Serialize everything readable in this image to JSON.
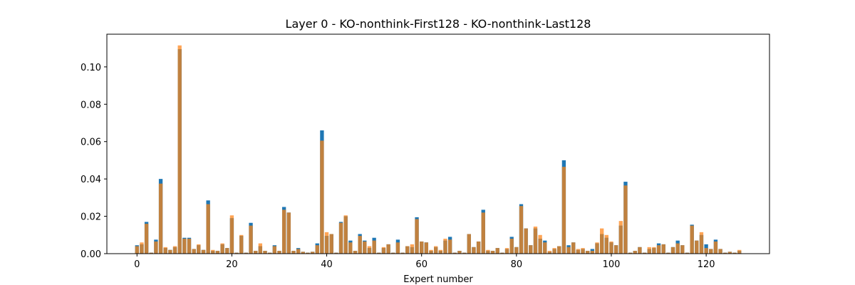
{
  "chart_data": {
    "type": "bar",
    "title": "Layer 0 - KO-nonthink-First128 - KO-nonthink-Last128",
    "xlabel": "Expert number",
    "ylabel": "",
    "xlim": [
      -6.35,
      133.35
    ],
    "ylim": [
      0,
      0.1175
    ],
    "xticks": [
      0,
      20,
      40,
      60,
      80,
      100,
      120
    ],
    "yticks": [
      0.0,
      0.02,
      0.04,
      0.06,
      0.08,
      0.1
    ],
    "ytick_labels": [
      "0.00",
      "0.02",
      "0.04",
      "0.06",
      "0.08",
      "0.10"
    ],
    "grid": false,
    "colors": {
      "first": "#1f77b4",
      "last": "#ff7f0e",
      "overlap": "#c0813f"
    },
    "series": [
      {
        "name": "KO-nonthink-First128",
        "values": [
          0.0045,
          0.005,
          0.017,
          0.0005,
          0.0075,
          0.04,
          0.003,
          0.002,
          0.0035,
          0.1095,
          0.0085,
          0.0085,
          0.0025,
          0.0045,
          0.002,
          0.0285,
          0.0015,
          0.0015,
          0.005,
          0.003,
          0.019,
          0.0005,
          0.0095,
          0.0005,
          0.0165,
          0.0015,
          0.004,
          0.0015,
          0.0005,
          0.0045,
          0.0015,
          0.025,
          0.022,
          0.0015,
          0.003,
          0.001,
          0.0005,
          0.001,
          0.0055,
          0.066,
          0.0095,
          0.0105,
          0.0005,
          0.017,
          0.02,
          0.007,
          0.0015,
          0.0105,
          0.007,
          0.003,
          0.0085,
          0.0005,
          0.003,
          0.005,
          0.0005,
          0.0075,
          0.0005,
          0.004,
          0.0035,
          0.0195,
          0.0065,
          0.006,
          0.0015,
          0.0035,
          0.0015,
          0.007,
          0.009,
          0.0005,
          0.0015,
          0.0005,
          0.0105,
          0.0035,
          0.0065,
          0.0235,
          0.0015,
          0.0015,
          0.003,
          0.0005,
          0.0025,
          0.009,
          0.0035,
          0.0265,
          0.0135,
          0.0045,
          0.0135,
          0.008,
          0.007,
          0.001,
          0.0025,
          0.004,
          0.05,
          0.0045,
          0.006,
          0.002,
          0.0025,
          0.0015,
          0.0025,
          0.0055,
          0.0105,
          0.0085,
          0.006,
          0.0045,
          0.015,
          0.0385,
          0.0005,
          0.0015,
          0.0035,
          0.0005,
          0.0025,
          0.003,
          0.0055,
          0.005,
          0.0005,
          0.0035,
          0.007,
          0.0045,
          0.0005,
          0.0155,
          0.007,
          0.01,
          0.005,
          0.0025,
          0.0075,
          0.0025,
          0.0005,
          0.001,
          0.0005,
          0.0015
        ]
      },
      {
        "name": "KO-nonthink-Last128",
        "values": [
          0.004,
          0.006,
          0.016,
          0.0005,
          0.0065,
          0.0375,
          0.0035,
          0.002,
          0.004,
          0.1115,
          0.008,
          0.008,
          0.0025,
          0.005,
          0.002,
          0.0265,
          0.002,
          0.0015,
          0.0055,
          0.003,
          0.0205,
          0.0005,
          0.01,
          0.0005,
          0.015,
          0.0015,
          0.0055,
          0.0015,
          0.0005,
          0.004,
          0.0015,
          0.0235,
          0.022,
          0.0015,
          0.0025,
          0.001,
          0.0005,
          0.001,
          0.0045,
          0.0605,
          0.0115,
          0.0105,
          0.0005,
          0.0165,
          0.0205,
          0.006,
          0.0015,
          0.0095,
          0.0065,
          0.004,
          0.007,
          0.0005,
          0.0035,
          0.005,
          0.0005,
          0.006,
          0.0005,
          0.004,
          0.005,
          0.0185,
          0.0065,
          0.006,
          0.002,
          0.004,
          0.002,
          0.008,
          0.0075,
          0.0005,
          0.0015,
          0.0005,
          0.0105,
          0.0035,
          0.0065,
          0.022,
          0.002,
          0.0015,
          0.003,
          0.0005,
          0.003,
          0.008,
          0.0035,
          0.0255,
          0.0135,
          0.0045,
          0.0145,
          0.01,
          0.006,
          0.0015,
          0.003,
          0.004,
          0.0465,
          0.0035,
          0.006,
          0.0025,
          0.003,
          0.0015,
          0.0015,
          0.006,
          0.0135,
          0.01,
          0.0065,
          0.0045,
          0.0175,
          0.0365,
          0.0005,
          0.0015,
          0.0035,
          0.0005,
          0.0035,
          0.0035,
          0.0045,
          0.005,
          0.0005,
          0.0035,
          0.0055,
          0.0045,
          0.0005,
          0.015,
          0.007,
          0.0115,
          0.003,
          0.0025,
          0.0065,
          0.0025,
          0.0005,
          0.001,
          0.0005,
          0.002
        ]
      }
    ]
  }
}
